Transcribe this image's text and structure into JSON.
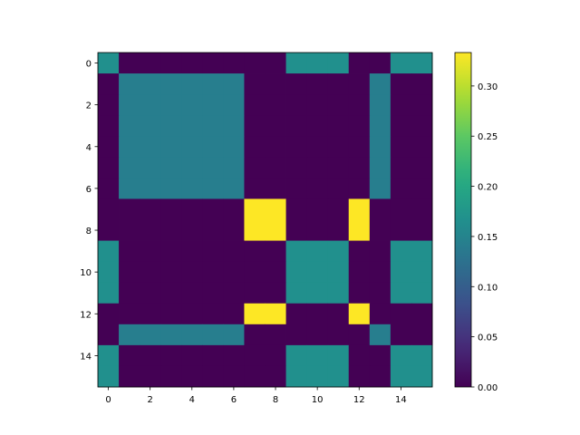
{
  "chart_data": {
    "type": "heatmap",
    "title": "",
    "xlabel": "",
    "ylabel": "",
    "colormap": "viridis",
    "vmin": 0,
    "vmax": 0.3333,
    "x_ticks": [
      "0",
      "2",
      "4",
      "6",
      "8",
      "10",
      "12",
      "14"
    ],
    "y_ticks": [
      "0",
      "2",
      "4",
      "6",
      "8",
      "10",
      "12",
      "14"
    ],
    "colorbar_ticks": [
      "0.00",
      "0.05",
      "0.10",
      "0.15",
      "0.20",
      "0.25",
      "0.30"
    ],
    "matrix": [
      [
        0.1667,
        0,
        0,
        0,
        0,
        0,
        0,
        0,
        0,
        0.1667,
        0.1667,
        0.1667,
        0,
        0,
        0.1667,
        0.1667
      ],
      [
        0,
        0.1429,
        0.1429,
        0.1429,
        0.1429,
        0.1429,
        0.1429,
        0,
        0,
        0,
        0,
        0,
        0,
        0.1429,
        0,
        0
      ],
      [
        0,
        0.1429,
        0.1429,
        0.1429,
        0.1429,
        0.1429,
        0.1429,
        0,
        0,
        0,
        0,
        0,
        0,
        0.1429,
        0,
        0
      ],
      [
        0,
        0.1429,
        0.1429,
        0.1429,
        0.1429,
        0.1429,
        0.1429,
        0,
        0,
        0,
        0,
        0,
        0,
        0.1429,
        0,
        0
      ],
      [
        0,
        0.1429,
        0.1429,
        0.1429,
        0.1429,
        0.1429,
        0.1429,
        0,
        0,
        0,
        0,
        0,
        0,
        0.1429,
        0,
        0
      ],
      [
        0,
        0.1429,
        0.1429,
        0.1429,
        0.1429,
        0.1429,
        0.1429,
        0,
        0,
        0,
        0,
        0,
        0,
        0.1429,
        0,
        0
      ],
      [
        0,
        0.1429,
        0.1429,
        0.1429,
        0.1429,
        0.1429,
        0.1429,
        0,
        0,
        0,
        0,
        0,
        0,
        0.1429,
        0,
        0
      ],
      [
        0,
        0,
        0,
        0,
        0,
        0,
        0,
        0.3333,
        0.3333,
        0,
        0,
        0,
        0.3333,
        0,
        0,
        0
      ],
      [
        0,
        0,
        0,
        0,
        0,
        0,
        0,
        0.3333,
        0.3333,
        0,
        0,
        0,
        0.3333,
        0,
        0,
        0
      ],
      [
        0.1667,
        0,
        0,
        0,
        0,
        0,
        0,
        0,
        0,
        0.1667,
        0.1667,
        0.1667,
        0,
        0,
        0.1667,
        0.1667
      ],
      [
        0.1667,
        0,
        0,
        0,
        0,
        0,
        0,
        0,
        0,
        0.1667,
        0.1667,
        0.1667,
        0,
        0,
        0.1667,
        0.1667
      ],
      [
        0.1667,
        0,
        0,
        0,
        0,
        0,
        0,
        0,
        0,
        0.1667,
        0.1667,
        0.1667,
        0,
        0,
        0.1667,
        0.1667
      ],
      [
        0,
        0,
        0,
        0,
        0,
        0,
        0,
        0.3333,
        0.3333,
        0,
        0,
        0,
        0.3333,
        0,
        0,
        0
      ],
      [
        0,
        0.1429,
        0.1429,
        0.1429,
        0.1429,
        0.1429,
        0.1429,
        0,
        0,
        0,
        0,
        0,
        0,
        0.1429,
        0,
        0
      ],
      [
        0.1667,
        0,
        0,
        0,
        0,
        0,
        0,
        0,
        0,
        0.1667,
        0.1667,
        0.1667,
        0,
        0,
        0.1667,
        0.1667
      ],
      [
        0.1667,
        0,
        0,
        0,
        0,
        0,
        0,
        0,
        0,
        0.1667,
        0.1667,
        0.1667,
        0,
        0,
        0.1667,
        0.1667
      ]
    ]
  }
}
